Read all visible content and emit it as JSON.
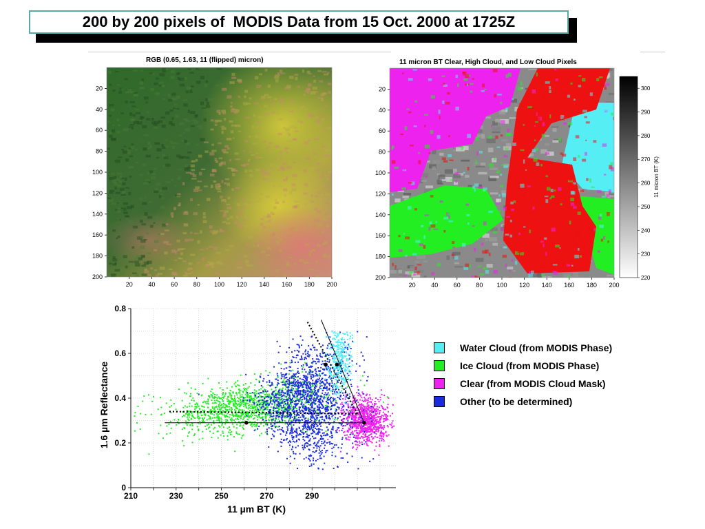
{
  "slide": {
    "title": "200 by 200 pixels of  MODIS Data from 15 Oct. 2000 at 1725Z"
  },
  "colors": {
    "water_cloud": "#55eef5",
    "ice_cloud": "#22ee22",
    "clear": "#ee22ee",
    "other": "#1a2bdd",
    "high_cloud_red": "#ee1111",
    "title_border": "#5aa7a7"
  },
  "chart_data": [
    {
      "type": "heatmap",
      "title": "RGB (0.65, 1.63, 11 (flipped) micron)",
      "x_ticks": [
        "20",
        "40",
        "60",
        "80",
        "100",
        "120",
        "140",
        "160",
        "180",
        "200"
      ],
      "y_ticks": [
        "20",
        "40",
        "60",
        "80",
        "100",
        "120",
        "140",
        "160",
        "180",
        "200"
      ],
      "xlim": [
        0,
        200
      ],
      "ylim": [
        0,
        200
      ]
    },
    {
      "type": "heatmap",
      "title": "11 micron BT  Clear, High Cloud, and Low Cloud Pixels",
      "x_ticks": [
        "20",
        "40",
        "60",
        "80",
        "100",
        "120",
        "140",
        "160",
        "180",
        "200"
      ],
      "y_ticks": [
        "20",
        "40",
        "60",
        "80",
        "100",
        "120",
        "140",
        "160",
        "180",
        "200"
      ],
      "xlim": [
        0,
        200
      ],
      "ylim": [
        0,
        200
      ],
      "colorbar": {
        "label": "11 micron BT (K)",
        "range": [
          220,
          305
        ],
        "ticks": [
          "300",
          "290",
          "280",
          "270",
          "260",
          "250",
          "240",
          "230",
          "220"
        ]
      }
    },
    {
      "type": "scatter",
      "xlabel": "11 µm BT (K)",
      "ylabel": "1.6 µm Reflectance",
      "x_ticks": [
        "210",
        "230",
        "250",
        "270",
        "290"
      ],
      "y_ticks": [
        "0",
        "0.2",
        "0.4",
        "0.6",
        "0.8"
      ],
      "xlim": [
        210,
        327
      ],
      "ylim": [
        0,
        0.8
      ],
      "grid": true,
      "legend_position": "right",
      "series": [
        {
          "name": "Water Cloud (from MODIS Phase)",
          "color_key": "water_cloud",
          "center": [
            302,
            0.58
          ],
          "spread": [
            2.5,
            0.08
          ]
        },
        {
          "name": "Ice Cloud (from MODIS Phase)",
          "color_key": "ice_cloud",
          "center": [
            262,
            0.32
          ],
          "spread": [
            18,
            0.05
          ]
        },
        {
          "name": "Clear (from MODIS Cloud Mask)",
          "color_key": "clear",
          "center": [
            314,
            0.3
          ],
          "spread": [
            5,
            0.05
          ]
        },
        {
          "name": "Other (to be determined)",
          "color_key": "other",
          "center": [
            288,
            0.38
          ],
          "spread": [
            10,
            0.12
          ]
        }
      ],
      "solid_lines": [
        [
          [
            225,
            0.29
          ],
          [
            313,
            0.29
          ]
        ],
        [
          [
            294,
            0.75
          ],
          [
            313,
            0.29
          ]
        ]
      ],
      "dotted_lines": [
        [
          [
            227,
            0.34
          ],
          [
            310,
            0.33
          ]
        ],
        [
          [
            288,
            0.74
          ],
          [
            310,
            0.33
          ]
        ]
      ],
      "markers": [
        [
          261,
          0.29
        ],
        [
          313,
          0.29
        ],
        [
          301,
          0.55
        ],
        [
          296,
          0.55
        ]
      ]
    }
  ]
}
